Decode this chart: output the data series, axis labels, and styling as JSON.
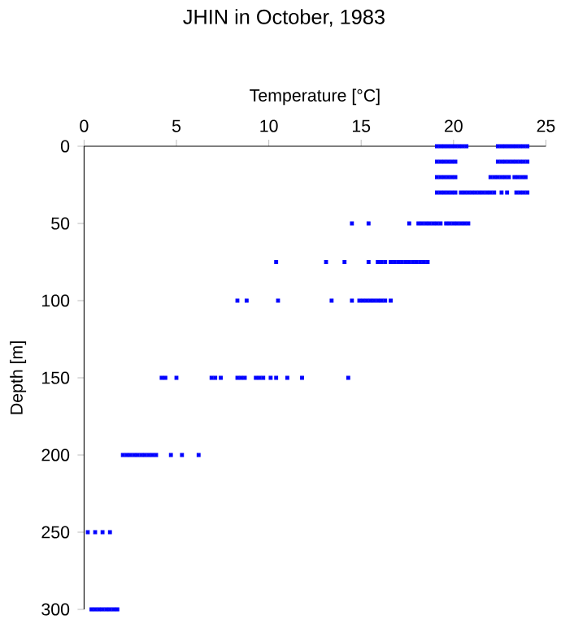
{
  "chart_data": {
    "type": "scatter",
    "title": "JHIN in October, 1983",
    "xlabel": "Temperature [°C]",
    "ylabel": "Depth [m]",
    "xlim": [
      0,
      25
    ],
    "ylim": [
      300,
      0
    ],
    "xticks": [
      0,
      5,
      10,
      15,
      20,
      25
    ],
    "yticks": [
      0,
      50,
      100,
      150,
      200,
      250,
      300
    ],
    "marker": "square",
    "series": [
      {
        "color": "#0000ff",
        "x": [
          19.1,
          19.3,
          19.5,
          19.7,
          19.9,
          20.1,
          20.3,
          20.5,
          20.7,
          22.4,
          22.6,
          22.8,
          23.0,
          23.2,
          23.4,
          23.6,
          23.8,
          24.0,
          19.1,
          19.3,
          19.5,
          19.7,
          19.9,
          20.1,
          22.4,
          22.6,
          22.8,
          23.0,
          23.2,
          23.4,
          23.6,
          23.8,
          24.0,
          19.1,
          19.3,
          19.5,
          19.7,
          19.9,
          20.1,
          22.0,
          22.2,
          22.4,
          22.6,
          22.8,
          23.0,
          23.3,
          23.5,
          23.7,
          23.9,
          19.1,
          19.3,
          19.5,
          19.7,
          19.9,
          20.1,
          20.4,
          20.6,
          20.8,
          21.0,
          21.2,
          21.4,
          21.6,
          21.8,
          22.0,
          22.2,
          22.6,
          22.9,
          23.4,
          23.6,
          23.8,
          24.0,
          14.5,
          15.4,
          17.6,
          18.1,
          18.3,
          18.5,
          18.7,
          18.9,
          19.1,
          19.3,
          19.6,
          19.8,
          20.0,
          20.2,
          20.4,
          20.6,
          20.8,
          10.4,
          13.1,
          14.1,
          15.4,
          15.9,
          16.1,
          16.3,
          16.6,
          16.8,
          17.0,
          17.2,
          17.4,
          17.6,
          17.8,
          18.0,
          18.2,
          18.4,
          18.6,
          8.3,
          8.8,
          10.5,
          13.4,
          14.5,
          14.9,
          15.1,
          15.3,
          15.5,
          15.7,
          15.9,
          16.1,
          16.3,
          16.6,
          4.2,
          4.4,
          5.0,
          6.9,
          7.1,
          7.4,
          8.3,
          8.5,
          8.7,
          9.3,
          9.5,
          9.7,
          10.1,
          10.4,
          11.0,
          11.8,
          14.3,
          2.1,
          2.3,
          2.5,
          2.7,
          2.9,
          3.1,
          3.3,
          3.5,
          3.7,
          3.9,
          4.7,
          5.3,
          6.2,
          0.2,
          0.6,
          1.0,
          1.4,
          0.4,
          0.6,
          0.8,
          1.0,
          1.2,
          1.4,
          1.6,
          1.8
        ],
        "values": [
          0,
          0,
          0,
          0,
          0,
          0,
          0,
          0,
          0,
          0,
          0,
          0,
          0,
          0,
          0,
          0,
          0,
          0,
          10,
          10,
          10,
          10,
          10,
          10,
          10,
          10,
          10,
          10,
          10,
          10,
          10,
          10,
          10,
          20,
          20,
          20,
          20,
          20,
          20,
          20,
          20,
          20,
          20,
          20,
          20,
          20,
          20,
          20,
          20,
          30,
          30,
          30,
          30,
          30,
          30,
          30,
          30,
          30,
          30,
          30,
          30,
          30,
          30,
          30,
          30,
          30,
          30,
          30,
          30,
          30,
          30,
          50,
          50,
          50,
          50,
          50,
          50,
          50,
          50,
          50,
          50,
          50,
          50,
          50,
          50,
          50,
          50,
          50,
          75,
          75,
          75,
          75,
          75,
          75,
          75,
          75,
          75,
          75,
          75,
          75,
          75,
          75,
          75,
          75,
          75,
          75,
          100,
          100,
          100,
          100,
          100,
          100,
          100,
          100,
          100,
          100,
          100,
          100,
          100,
          100,
          150,
          150,
          150,
          150,
          150,
          150,
          150,
          150,
          150,
          150,
          150,
          150,
          150,
          150,
          150,
          150,
          150,
          200,
          200,
          200,
          200,
          200,
          200,
          200,
          200,
          200,
          200,
          200,
          200,
          200,
          250,
          250,
          250,
          250,
          300,
          300,
          300,
          300,
          300,
          300,
          300,
          300
        ]
      }
    ]
  }
}
